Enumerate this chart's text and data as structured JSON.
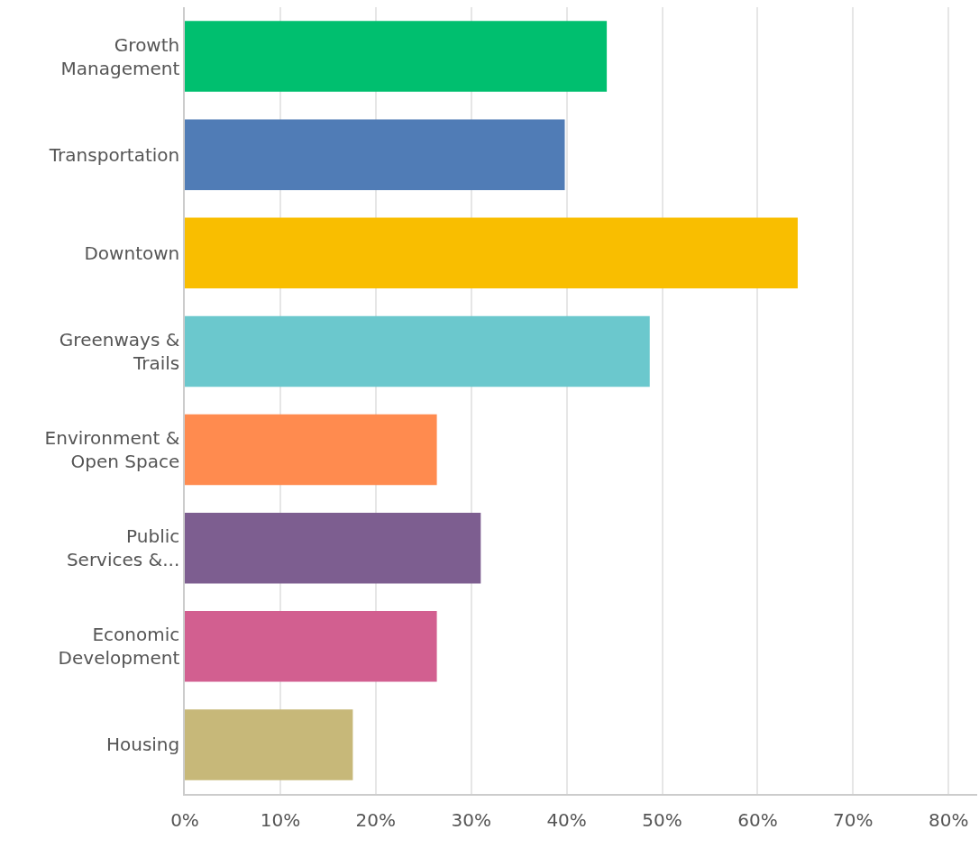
{
  "chart_data": {
    "type": "bar",
    "orientation": "horizontal",
    "categories": [
      "Growth Management",
      "Transportation",
      "Downtown",
      "Greenways & Trails",
      "Environment & Open Space",
      "Public Services &...",
      "Economic Development",
      "Housing"
    ],
    "values": [
      44.2,
      39.8,
      64.2,
      48.7,
      26.4,
      31.0,
      26.4,
      17.6
    ],
    "colors": [
      "#00bf6f",
      "#507cb6",
      "#f9be00",
      "#6bc8cd",
      "#ff8b4f",
      "#7d5e90",
      "#d25f90",
      "#c7b879"
    ],
    "xlim": [
      0,
      83
    ],
    "xticks": [
      {
        "value": 0,
        "label": "0%"
      },
      {
        "value": 10,
        "label": "10%"
      },
      {
        "value": 20,
        "label": "20%"
      },
      {
        "value": 30,
        "label": "30%"
      },
      {
        "value": 40,
        "label": "40%"
      },
      {
        "value": 50,
        "label": "50%"
      },
      {
        "value": 60,
        "label": "60%"
      },
      {
        "value": 70,
        "label": "70%"
      },
      {
        "value": 80,
        "label": "80%"
      }
    ],
    "grid": "x"
  }
}
